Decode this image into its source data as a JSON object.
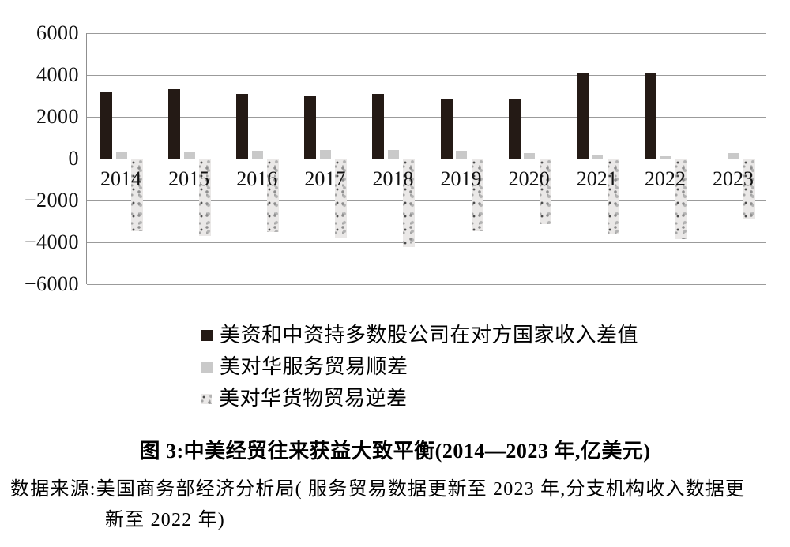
{
  "figure": {
    "title": "图 3:中美经贸往来获益大致平衡(2014—2023 年,亿美元)",
    "source_line1": "数据来源:美国商务部经济分析局( 服务贸易数据更新至 2023 年,分支机构收入数据更",
    "source_line2": "新至 2022 年)"
  },
  "chart_data": {
    "type": "bar",
    "title": "图 3:中美经贸往来获益大致平衡(2014—2023 年,亿美元)",
    "unit": "亿美元",
    "categories": [
      "2014",
      "2015",
      "2016",
      "2017",
      "2018",
      "2019",
      "2020",
      "2021",
      "2022",
      "2023"
    ],
    "series": [
      {
        "name": "美资和中资持多数股公司在对方国家收入差值",
        "color": "#241a15",
        "style": "solid-dark",
        "values": [
          3170,
          3330,
          3080,
          2980,
          3100,
          2820,
          2860,
          4060,
          4120,
          null
        ]
      },
      {
        "name": "美对华服务贸易顺差",
        "color": "#c9c9c9",
        "style": "solid-gray",
        "values": [
          290,
          330,
          370,
          400,
          410,
          390,
          250,
          160,
          130,
          250
        ]
      },
      {
        "name": "美对华货物贸易逆差",
        "color": "#eae8e7",
        "style": "speckled",
        "values": [
          -3450,
          -3670,
          -3470,
          -3750,
          -4180,
          -3430,
          -3100,
          -3530,
          -3820,
          -2830
        ]
      }
    ],
    "ylim": [
      -6000,
      6000
    ],
    "yticks": [
      6000,
      4000,
      2000,
      0,
      -2000,
      -4000,
      -6000
    ],
    "grid": true,
    "legend_position": "below-left",
    "gridline_color": "#9b9b9b"
  }
}
